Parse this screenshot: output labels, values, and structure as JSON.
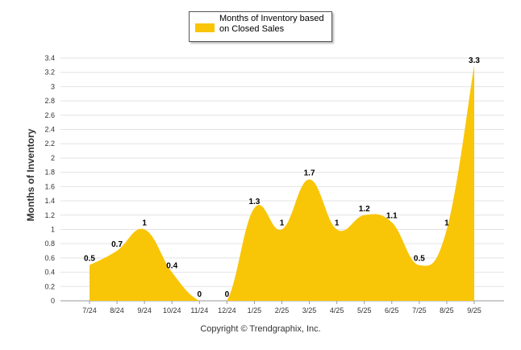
{
  "chart_data": {
    "type": "area",
    "title": "",
    "xlabel": "",
    "ylabel": "Months of Inventory",
    "categories": [
      "7/24",
      "8/24",
      "9/24",
      "10/24",
      "11/24",
      "12/24",
      "1/25",
      "2/25",
      "3/25",
      "4/25",
      "5/25",
      "6/25",
      "7/25",
      "8/25",
      "9/25"
    ],
    "series": [
      {
        "name": "Months of Inventory based\non Closed Sales",
        "values": [
          0.5,
          0.7,
          1,
          0.4,
          0,
          0,
          1.3,
          1,
          1.7,
          1,
          1.2,
          1.1,
          0.5,
          1,
          3.3
        ],
        "labels": [
          "0.5",
          "0.7",
          "1",
          "0.4",
          "0",
          "0",
          "1.3",
          "1",
          "1.7",
          "1",
          "1.2",
          "1.1",
          "0.5",
          "1",
          "3.3"
        ],
        "color": "#f9c507"
      }
    ],
    "ylim": [
      0,
      3.4
    ],
    "yticks": [
      "0",
      "0.2",
      "0.4",
      "0.6",
      "0.8",
      "1",
      "1.2",
      "1.4",
      "1.6",
      "1.8",
      "2",
      "2.2",
      "2.4",
      "2.6",
      "2.8",
      "3",
      "3.2",
      "3.4"
    ],
    "grid": true,
    "legend": "top-center"
  },
  "footer": {
    "copyright": "Copyright © Trendgraphix, Inc."
  }
}
